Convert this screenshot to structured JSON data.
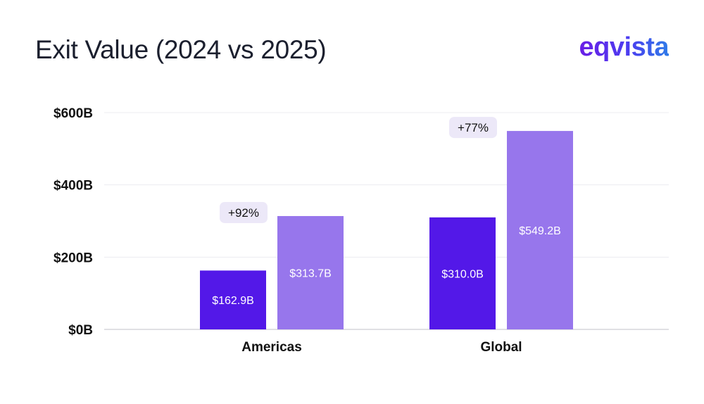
{
  "title": "Exit Value (2024 vs 2025)",
  "brand": "eqvista",
  "chart_data": {
    "type": "bar",
    "title": "Exit Value (2024 vs 2025)",
    "categories": [
      "Americas",
      "Global"
    ],
    "series": [
      {
        "values": [
          162.9,
          310.0
        ],
        "labels": [
          "$162.9B",
          "$310.0B"
        ],
        "color": "#5318e8"
      },
      {
        "values": [
          313.7,
          549.2
        ],
        "labels": [
          "$313.7B",
          "$549.2B"
        ],
        "color": "#9776ec"
      }
    ],
    "growth_labels": [
      "+92%",
      "+77%"
    ],
    "yticks": [
      0,
      200,
      400,
      600
    ],
    "ytick_labels": [
      "$0B",
      "$200B",
      "$400B",
      "$600B"
    ],
    "ylim": [
      0,
      600
    ],
    "grid": true,
    "legend": "none",
    "colors": {
      "badge_bg": "#ece8f8",
      "grid": "#ececf0",
      "axis": "#d6d6dc"
    }
  }
}
